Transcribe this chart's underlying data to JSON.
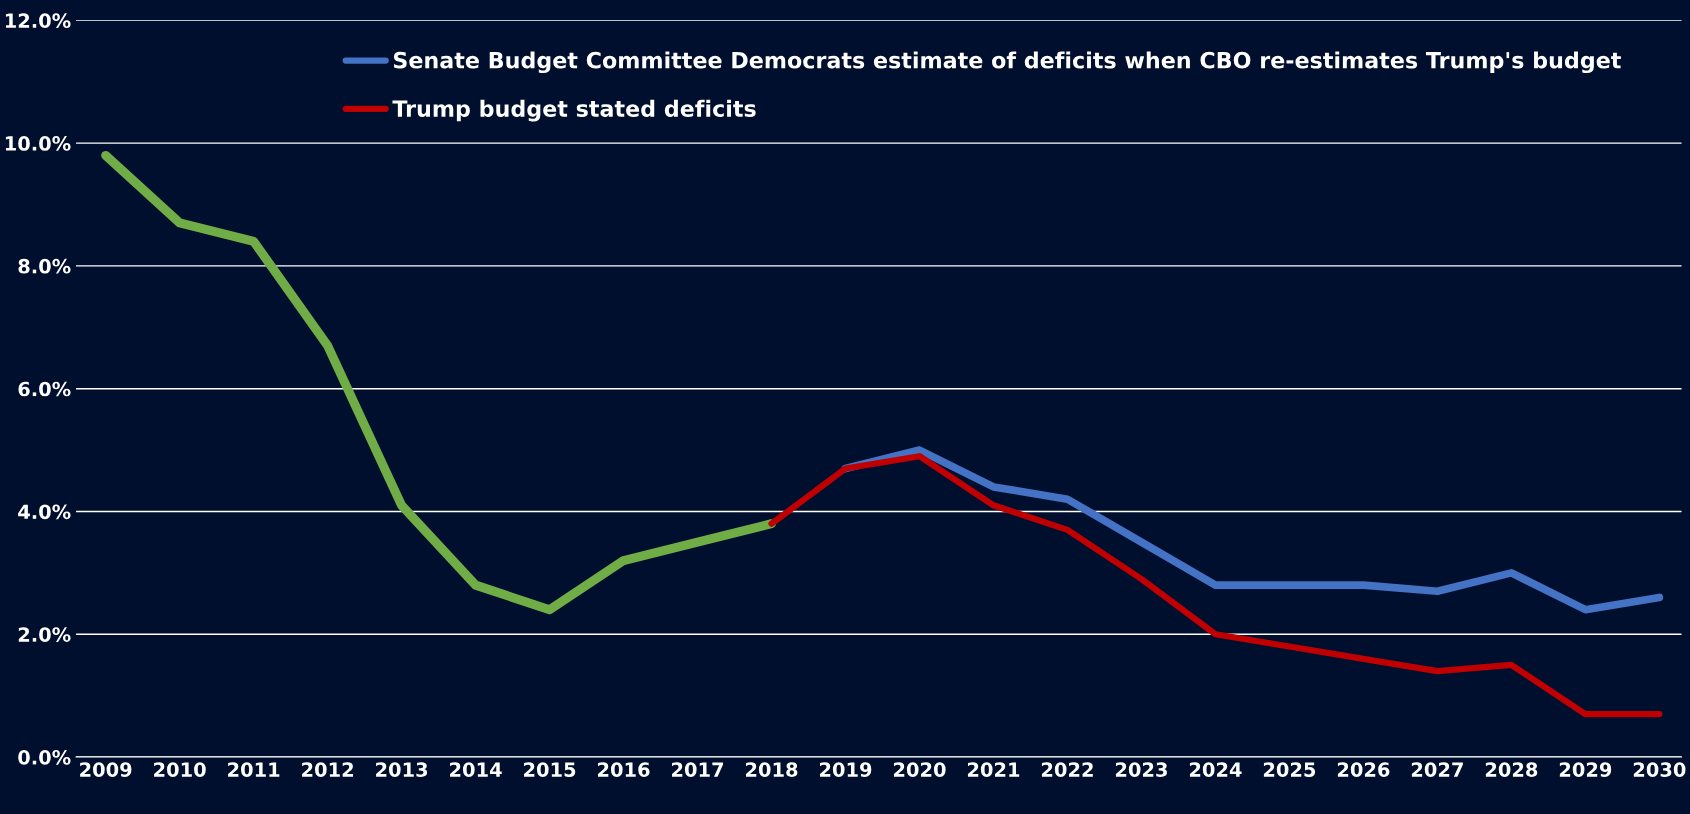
{
  "chart_data": {
    "type": "line",
    "xlim": [
      2008.6,
      2030.3
    ],
    "ylim": [
      0,
      12
    ],
    "xticks": [
      2009,
      2010,
      2011,
      2012,
      2013,
      2014,
      2015,
      2016,
      2017,
      2018,
      2019,
      2020,
      2021,
      2022,
      2023,
      2024,
      2025,
      2026,
      2027,
      2028,
      2029,
      2030
    ],
    "yticks": [
      {
        "value": 0,
        "label": "0.0%"
      },
      {
        "value": 2,
        "label": "2.0%"
      },
      {
        "value": 4,
        "label": "4.0%"
      },
      {
        "value": 6,
        "label": "6.0%"
      },
      {
        "value": 8,
        "label": "8.0%"
      },
      {
        "value": 10,
        "label": "10.0%"
      },
      {
        "value": 12,
        "label": "12.0%"
      }
    ],
    "grid": "y",
    "legend": "top right",
    "marker": "none",
    "line_style": "solid",
    "series": [
      {
        "color": "#70ad47",
        "x": [
          2009,
          2010,
          2011,
          2012,
          2013,
          2014,
          2015,
          2016,
          2017,
          2018
        ],
        "values": [
          9.8,
          8.7,
          8.4,
          6.7,
          4.1,
          2.8,
          2.4,
          3.2,
          3.5,
          3.8
        ]
      },
      {
        "name": "Senate Budget Committee Democrats estimate of deficits when CBO re-estimates Trump's budget",
        "color": "#4472c4",
        "x": [
          2019,
          2020,
          2021,
          2022,
          2023,
          2024,
          2025,
          2026,
          2027,
          2028,
          2029,
          2030
        ],
        "values": [
          4.7,
          5.0,
          4.4,
          4.2,
          3.5,
          2.8,
          2.8,
          2.8,
          2.7,
          3.0,
          2.4,
          2.6
        ]
      },
      {
        "name": "Trump budget stated deficits",
        "color": "#c00000",
        "x": [
          2018,
          2019,
          2020,
          2021,
          2022,
          2023,
          2024,
          2025,
          2026,
          2027,
          2028,
          2029,
          2030
        ],
        "values": [
          3.8,
          4.7,
          4.9,
          4.1,
          3.7,
          2.9,
          2.0,
          1.8,
          1.6,
          1.4,
          1.5,
          0.7,
          0.7
        ]
      }
    ]
  }
}
